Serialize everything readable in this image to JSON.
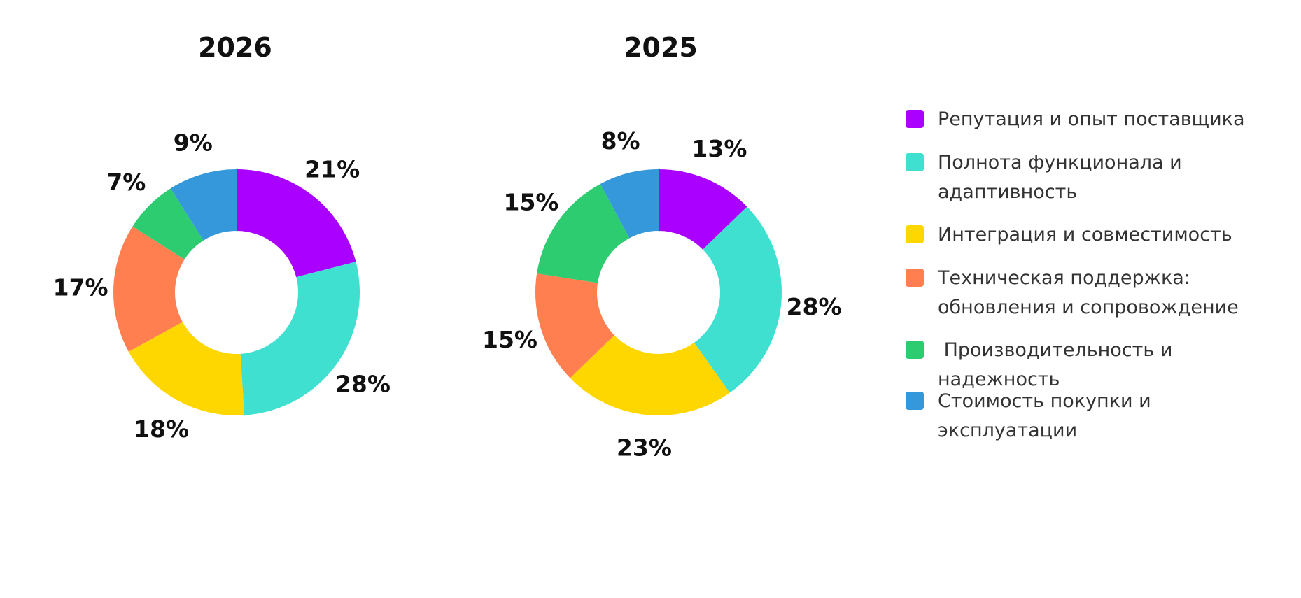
{
  "colors": {
    "reputation": "#AA00FF",
    "functionality": "#40E0D0",
    "integration": "#FFD700",
    "support": "#FF7F50",
    "performance": "#2ECC71",
    "cost": "#3498DB"
  },
  "legend": [
    {
      "key": "reputation",
      "label": "Репутация и опыт поставщика"
    },
    {
      "key": "functionality",
      "label": "Полнота функционала и\nадаптивность"
    },
    {
      "key": "integration",
      "label": "Интеграция и совместимость"
    },
    {
      "key": "support",
      "label": "Техническая поддержка:\nобновления и сопровождение"
    },
    {
      "key": "performance",
      "label": " Производительность и\nнадежность"
    },
    {
      "key": "cost",
      "label": "Стоимость покупки и\nэксплуатации"
    }
  ],
  "chart_data": [
    {
      "type": "pie",
      "title": "2026",
      "categories": [
        "Репутация и опыт поставщика",
        "Полнота функционала и адаптивность",
        "Интеграция и совместимость",
        "Техническая поддержка: обновления и сопровождение",
        "Производительность и надежность",
        "Стоимость покупки и эксплуатации"
      ],
      "values": [
        21,
        28,
        18,
        17,
        7,
        9
      ],
      "labels": [
        "21%",
        "28%",
        "18%",
        "17%",
        "7%",
        "9%"
      ],
      "donut": true,
      "legend": "right"
    },
    {
      "type": "pie",
      "title": "2025",
      "categories": [
        "Репутация и опыт поставщика",
        "Полнота функционала и адаптивность",
        "Интеграция и совместимость",
        "Техническая поддержка: обновления и сопровождение",
        "Производительность и надежность",
        "Стоимость покупки и эксплуатации"
      ],
      "values": [
        13,
        28,
        23,
        15,
        15,
        8
      ],
      "labels": [
        "13%",
        "28%",
        "23%",
        "15%",
        "15%",
        "8%"
      ],
      "donut": true,
      "legend": "right"
    }
  ]
}
